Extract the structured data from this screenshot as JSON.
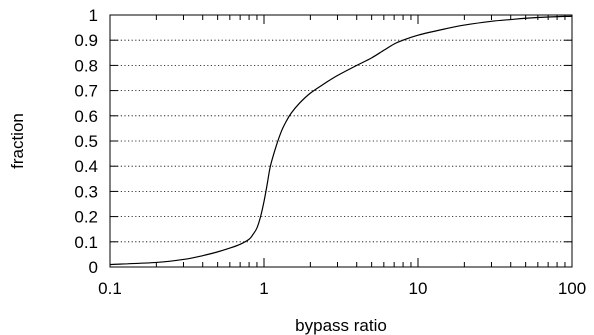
{
  "chart_data": {
    "type": "line",
    "title": "",
    "xlabel": "bypass ratio",
    "ylabel": "fraction",
    "xscale": "log",
    "xlim": [
      0.1,
      100
    ],
    "ylim": [
      0,
      1
    ],
    "x_ticks": [
      {
        "value": 0.1,
        "label": "0.1"
      },
      {
        "value": 1,
        "label": "1"
      },
      {
        "value": 10,
        "label": "10"
      },
      {
        "value": 100,
        "label": "100"
      }
    ],
    "y_ticks": [
      {
        "value": 0,
        "label": "0"
      },
      {
        "value": 0.1,
        "label": "0.1"
      },
      {
        "value": 0.2,
        "label": "0.2"
      },
      {
        "value": 0.3,
        "label": "0.3"
      },
      {
        "value": 0.4,
        "label": "0.4"
      },
      {
        "value": 0.5,
        "label": "0.5"
      },
      {
        "value": 0.6,
        "label": "0.6"
      },
      {
        "value": 0.7,
        "label": "0.7"
      },
      {
        "value": 0.8,
        "label": "0.8"
      },
      {
        "value": 0.9,
        "label": "0.9"
      },
      {
        "value": 1,
        "label": "1"
      }
    ],
    "grid": {
      "horizontal": true,
      "vertical": false,
      "style": "dotted"
    },
    "legend": "none",
    "series": [
      {
        "color": "#000000",
        "x": [
          0.1,
          0.2,
          0.3,
          0.4,
          0.5,
          0.6,
          0.7,
          0.8,
          0.85,
          0.9,
          0.95,
          1.0,
          1.05,
          1.1,
          1.2,
          1.3,
          1.4,
          1.5,
          1.7,
          2.0,
          2.5,
          3,
          4,
          5,
          6,
          7,
          8,
          10,
          15,
          20,
          30,
          40,
          50,
          70,
          100
        ],
        "y": [
          0.01,
          0.018,
          0.03,
          0.045,
          0.06,
          0.075,
          0.09,
          0.11,
          0.13,
          0.155,
          0.2,
          0.26,
          0.33,
          0.4,
          0.48,
          0.54,
          0.58,
          0.61,
          0.65,
          0.69,
          0.73,
          0.76,
          0.8,
          0.83,
          0.86,
          0.885,
          0.9,
          0.92,
          0.945,
          0.96,
          0.975,
          0.982,
          0.987,
          0.992,
          0.995
        ]
      }
    ]
  }
}
